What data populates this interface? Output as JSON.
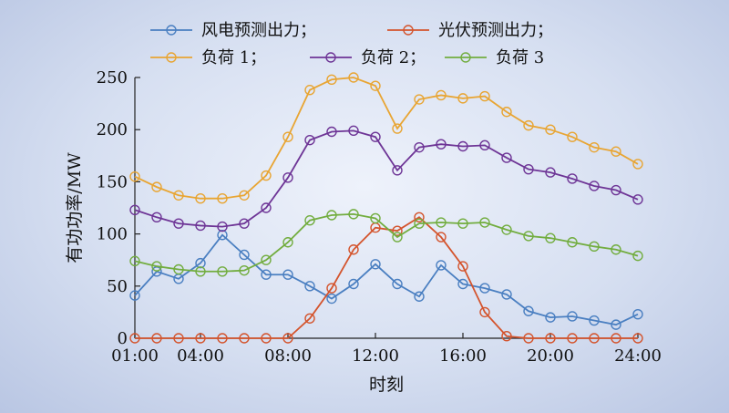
{
  "chart_data": {
    "type": "line",
    "x": [
      "01:00",
      "02:00",
      "03:00",
      "04:00",
      "05:00",
      "06:00",
      "07:00",
      "08:00",
      "09:00",
      "10:00",
      "11:00",
      "12:00",
      "13:00",
      "14:00",
      "15:00",
      "16:00",
      "17:00",
      "18:00",
      "19:00",
      "20:00",
      "21:00",
      "22:00",
      "23:00",
      "24:00"
    ],
    "xticks": [
      "01:00",
      "04:00",
      "08:00",
      "12:00",
      "16:00",
      "20:00",
      "24:00"
    ],
    "xlabel": "时刻",
    "ylabel": "有功功率/MW",
    "ylim": [
      0,
      250
    ],
    "yticks": [
      0,
      50,
      100,
      150,
      200,
      250
    ],
    "grid": false,
    "legend_position": "top",
    "series": [
      {
        "name": "风电预测出力；",
        "color": "#4a7fc1",
        "values": [
          41,
          64,
          57,
          72,
          99,
          80,
          61,
          61,
          50,
          38,
          52,
          71,
          52,
          40,
          70,
          52,
          48,
          42,
          26,
          20,
          21,
          17,
          13,
          23
        ]
      },
      {
        "name": "光伏预测出力；",
        "color": "#d4542d",
        "values": [
          0,
          0,
          0,
          0,
          0,
          0,
          0,
          0,
          19,
          48,
          85,
          106,
          103,
          116,
          97,
          69,
          25,
          2,
          0,
          0,
          0,
          0,
          0,
          0
        ]
      },
      {
        "name": "负荷 1；",
        "color": "#e8a533",
        "values": [
          155,
          145,
          137,
          134,
          134,
          137,
          156,
          193,
          238,
          248,
          250,
          242,
          201,
          229,
          233,
          230,
          232,
          217,
          204,
          200,
          193,
          183,
          179,
          167
        ]
      },
      {
        "name": "负荷 2；",
        "color": "#6e3596",
        "values": [
          123,
          116,
          110,
          108,
          107,
          110,
          125,
          154,
          190,
          198,
          199,
          193,
          161,
          183,
          186,
          184,
          185,
          173,
          162,
          159,
          153,
          146,
          142,
          133
        ]
      },
      {
        "name": "负荷 3",
        "color": "#72ad3f",
        "values": [
          74,
          69,
          66,
          64,
          64,
          65,
          75,
          92,
          113,
          118,
          119,
          115,
          97,
          110,
          111,
          110,
          111,
          104,
          98,
          96,
          92,
          88,
          85,
          79
        ]
      }
    ]
  }
}
